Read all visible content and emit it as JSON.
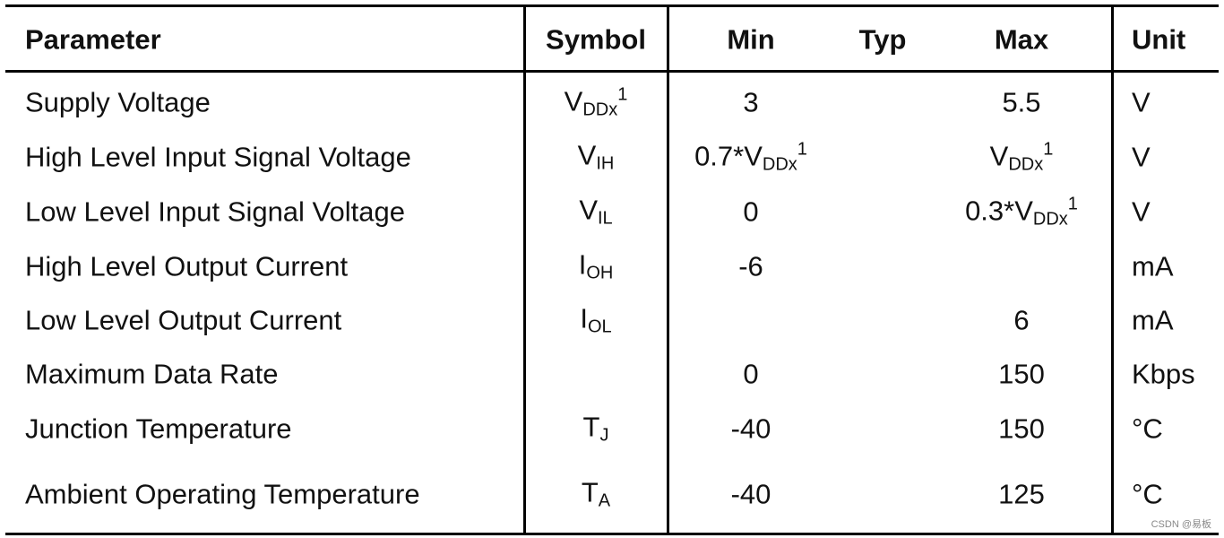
{
  "table": {
    "header": [
      "Parameter",
      "Symbol",
      "Min",
      "Typ",
      "Max",
      "Unit"
    ],
    "rows": [
      [
        "Supply Voltage",
        {
          "base": "V",
          "sub": "DDx",
          "sup": "1"
        },
        3,
        null,
        5.5,
        "V"
      ],
      [
        "High Level Input Signal Voltage",
        {
          "base": "V",
          "sub": "IH"
        },
        {
          "base": "0.7*V",
          "sub": "DDx",
          "sup": "1"
        },
        null,
        {
          "base": "V",
          "sub": "DDx",
          "sup": "1"
        },
        "V"
      ],
      [
        "Low Level Input Signal Voltage",
        {
          "base": "V",
          "sub": "IL"
        },
        0,
        null,
        {
          "base": "0.3*V",
          "sub": "DDx",
          "sup": "1"
        },
        "V"
      ],
      [
        "High Level Output Current",
        {
          "base": "I",
          "sub": "OH"
        },
        -6,
        null,
        null,
        "mA"
      ],
      [
        "Low Level Output Current",
        {
          "base": "I",
          "sub": "OL"
        },
        null,
        null,
        6,
        "mA"
      ],
      [
        "Maximum Data Rate",
        null,
        0,
        null,
        150,
        "Kbps"
      ],
      [
        "Junction Temperature",
        {
          "base": "T",
          "sub": "J"
        },
        -40,
        null,
        150,
        "°C"
      ],
      [
        "Ambient Operating Temperature",
        {
          "base": "T",
          "sub": "A"
        },
        -40,
        null,
        125,
        "°C"
      ]
    ]
  },
  "watermark": "CSDN @易板"
}
